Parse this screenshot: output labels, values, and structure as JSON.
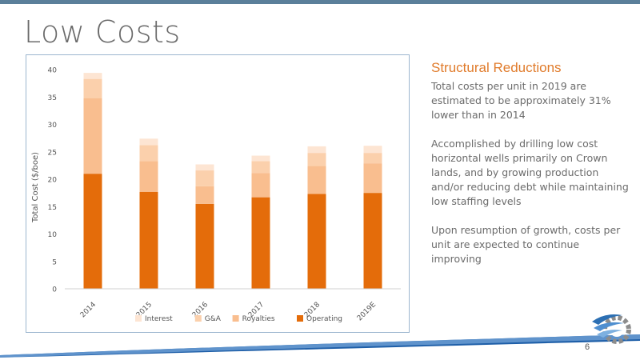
{
  "slide": {
    "title": "Low Costs",
    "page_number": "6"
  },
  "side_panel": {
    "heading": "Structural Reductions",
    "paragraphs": [
      "Total costs per unit in 2019 are estimated to be approximately 31% lower than in 2014",
      "Accomplished by drilling low cost horizontal wells primarily on Crown lands, and by growing production and/or reducing debt while maintaining low staffing levels",
      "Upon resumption of growth, costs per unit are expected to continue improving"
    ]
  },
  "colors": {
    "operating": "#e46c0a",
    "royalties": "#f9be8f",
    "ga": "#fbd0ac",
    "interest": "#fde5d3",
    "title": "#6b6b6b",
    "accent": "#e07b2b",
    "frame": "#9bb6cf",
    "brand_blue": "#2c6fb3"
  },
  "chart_data": {
    "type": "bar",
    "stacked": true,
    "categories": [
      "2014",
      "2015",
      "2016",
      "2017",
      "2018",
      "2019E"
    ],
    "series": [
      {
        "name": "Operating",
        "values": [
          21.0,
          17.7,
          15.5,
          16.7,
          17.3,
          17.5
        ]
      },
      {
        "name": "Royalties",
        "values": [
          13.8,
          5.6,
          3.2,
          4.4,
          5.1,
          5.4
        ]
      },
      {
        "name": "G&A",
        "values": [
          3.5,
          2.9,
          2.9,
          2.2,
          2.4,
          1.9
        ]
      },
      {
        "name": "Interest",
        "values": [
          1.1,
          1.2,
          1.1,
          1.0,
          1.2,
          1.3
        ]
      }
    ],
    "legend_order": [
      "Interest",
      "G&A",
      "Royalties",
      "Operating"
    ],
    "ylabel": "Total Cost ($/boe)",
    "xlabel": "",
    "ylim": [
      0,
      40
    ],
    "yticks": [
      0,
      5,
      10,
      15,
      20,
      25,
      30,
      35,
      40
    ],
    "grid": false,
    "legend_position": "bottom"
  }
}
